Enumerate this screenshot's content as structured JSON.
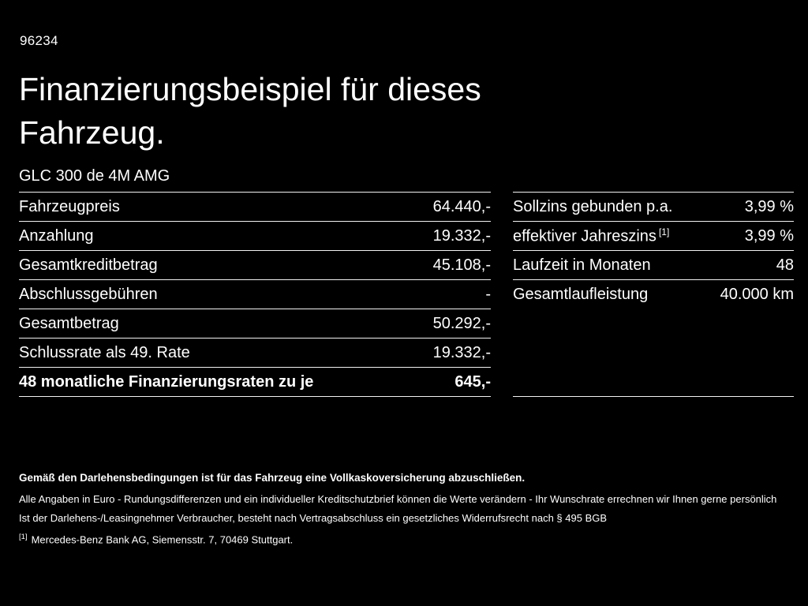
{
  "colors": {
    "background": "#000000",
    "text": "#ffffff",
    "divider": "#f2f2f2"
  },
  "header": {
    "code": "96234",
    "title_line1": "Finanzierungsbeispiel für dieses",
    "title_line2": "Fahrzeug.",
    "model": "GLC 300 de 4M AMG"
  },
  "left_table": {
    "rows": [
      {
        "label": "Fahrzeugpreis",
        "value": "64.440,-"
      },
      {
        "label": "Anzahlung",
        "value": "19.332,-"
      },
      {
        "label": "Gesamtkreditbetrag",
        "value": "45.108,-"
      },
      {
        "label": "Abschlussgebühren",
        "value": "-"
      },
      {
        "label": "Gesamtbetrag",
        "value": "50.292,-"
      },
      {
        "label": "Schlussrate als 49. Rate",
        "value": "19.332,-"
      },
      {
        "label": "48 monatliche Finanzierungsraten zu je",
        "value": "645,-"
      }
    ]
  },
  "right_table": {
    "rows": [
      {
        "label": "Sollzins gebunden p.a.",
        "sup": "",
        "value": "3,99 %"
      },
      {
        "label": "effektiver Jahreszins",
        "sup": "[1]",
        "value": "3,99 %"
      },
      {
        "label": "Laufzeit in Monaten",
        "sup": "",
        "value": "48"
      },
      {
        "label": "Gesamtlaufleistung",
        "sup": "",
        "value": "40.000 km"
      }
    ]
  },
  "footer": {
    "bold_note": "Gemäß den Darlehensbedingungen ist für das Fahrzeug eine Vollkaskoversicherung abzuschließen.",
    "note1": "Alle Angaben in Euro - Rundungsdifferenzen und ein individueller Kreditschutzbrief können die Werte verändern - Ihr Wunschrate errechnen wir Ihnen gerne persönlich",
    "note2": "Ist der Darlehens-/Leasingnehmer Verbraucher, besteht nach Vertragsabschluss ein gesetzliches Widerrufsrecht nach § 495 BGB",
    "footnote_marker": "[1]",
    "footnote_text": "Mercedes-Benz Bank AG, Siemensstr. 7, 70469 Stuttgart."
  }
}
